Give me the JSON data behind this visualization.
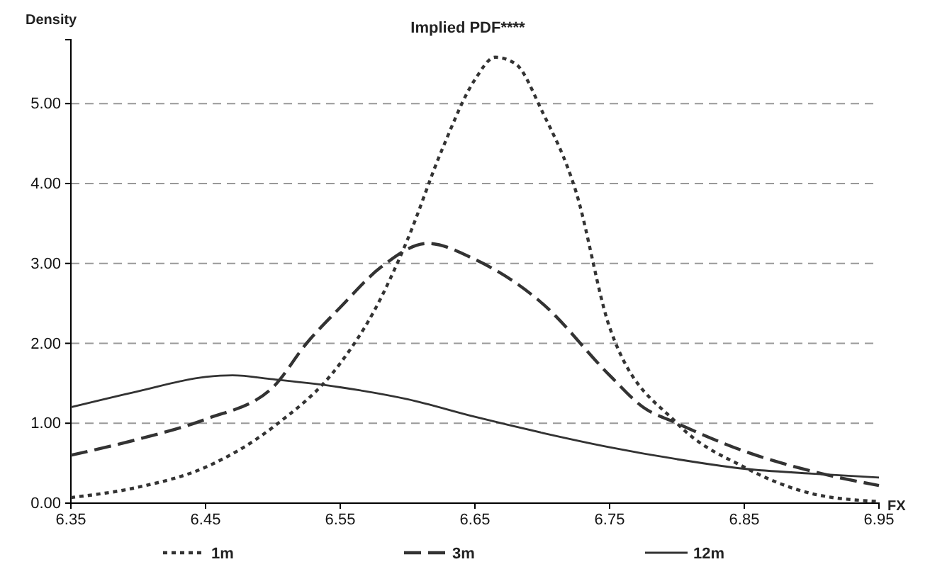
{
  "chart_data": {
    "type": "line",
    "title": "Implied PDF****",
    "ylabel": "Density",
    "xlabel": "FX",
    "xlim": [
      6.35,
      6.95
    ],
    "xticks": [
      6.35,
      6.45,
      6.55,
      6.65,
      6.75,
      6.85,
      6.95
    ],
    "ylim": [
      0,
      5.8
    ],
    "yticks": [
      {
        "value": 0,
        "label": "0.00"
      },
      {
        "value": 1,
        "label": "1.00"
      },
      {
        "value": 2,
        "label": "2.00"
      },
      {
        "value": 3,
        "label": "3.00"
      },
      {
        "value": 4,
        "label": "4.00"
      },
      {
        "value": 5,
        "label": "5.00"
      }
    ],
    "grid": "y",
    "legend": "bottom",
    "marker": "none",
    "series": [
      {
        "name": "1m",
        "color": "#333333",
        "line_style": "dotted",
        "x": [
          6.35,
          6.4,
          6.45,
          6.5,
          6.55,
          6.575,
          6.6,
          6.625,
          6.65,
          6.665,
          6.68,
          6.7,
          6.725,
          6.75,
          6.8,
          6.85,
          6.9,
          6.95
        ],
        "values": [
          0.07,
          0.2,
          0.45,
          0.95,
          1.75,
          2.4,
          3.3,
          4.4,
          5.3,
          5.58,
          5.5,
          4.9,
          3.9,
          2.2,
          1.0,
          0.45,
          0.12,
          0.02
        ]
      },
      {
        "name": "3m",
        "color": "#333333",
        "line_style": "dashed",
        "x": [
          6.35,
          6.4,
          6.45,
          6.5,
          6.525,
          6.55,
          6.58,
          6.615,
          6.65,
          6.7,
          6.75,
          6.775,
          6.8,
          6.85,
          6.9,
          6.95
        ],
        "values": [
          0.6,
          0.8,
          1.05,
          1.45,
          2.0,
          2.45,
          2.95,
          3.25,
          3.05,
          2.5,
          1.6,
          1.2,
          1.0,
          0.65,
          0.4,
          0.22
        ]
      },
      {
        "name": "12m",
        "color": "#333333",
        "line_style": "solid",
        "x": [
          6.35,
          6.4,
          6.45,
          6.47,
          6.5,
          6.55,
          6.6,
          6.65,
          6.7,
          6.75,
          6.8,
          6.85,
          6.9,
          6.95
        ],
        "values": [
          1.2,
          1.4,
          1.58,
          1.6,
          1.55,
          1.45,
          1.3,
          1.08,
          0.88,
          0.7,
          0.55,
          0.43,
          0.37,
          0.32
        ]
      }
    ]
  }
}
